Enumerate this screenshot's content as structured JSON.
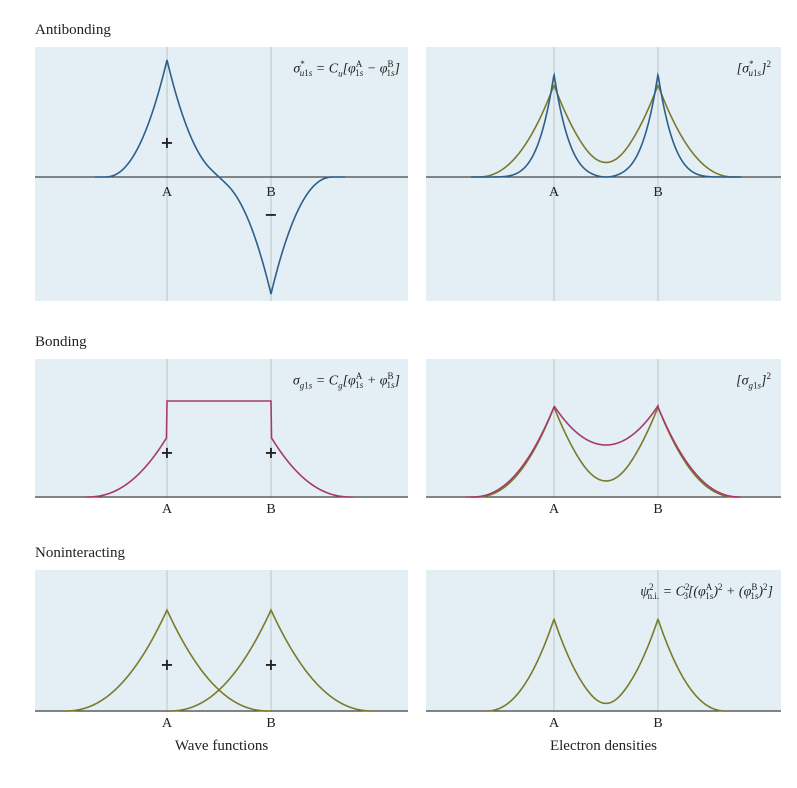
{
  "rows": [
    {
      "title": "Antibonding",
      "wave_eq": "σ*u1s = Cu[φA1s − φB1s]",
      "density_eq": "[σ*u1s]2",
      "wave_signs": [
        "+",
        "−"
      ],
      "wave_color": "#2e5f8a",
      "density_colors": [
        "#2e5f8a",
        "#7a7a2a"
      ]
    },
    {
      "title": "Bonding",
      "wave_eq": "σg1s = Cg[φA1s + φB1s]",
      "density_eq": "[σg1s]2",
      "wave_signs": [
        "+",
        "+"
      ],
      "wave_color": "#a63a6b",
      "density_colors": [
        "#a63a6b",
        "#7a7a2a"
      ]
    },
    {
      "title": "Noninteracting",
      "wave_eq": "",
      "density_eq": "ψ2n.i. = C23[(φA1s)2 + (φB1s)2]",
      "wave_signs": [
        "+",
        "+"
      ],
      "wave_color": "#7a7a2a",
      "density_colors": [
        "#7a7a2a"
      ]
    }
  ],
  "axis_labels": {
    "a": "A",
    "b": "B"
  },
  "captions": {
    "left": "Wave functions",
    "right": "Electron densities"
  }
}
